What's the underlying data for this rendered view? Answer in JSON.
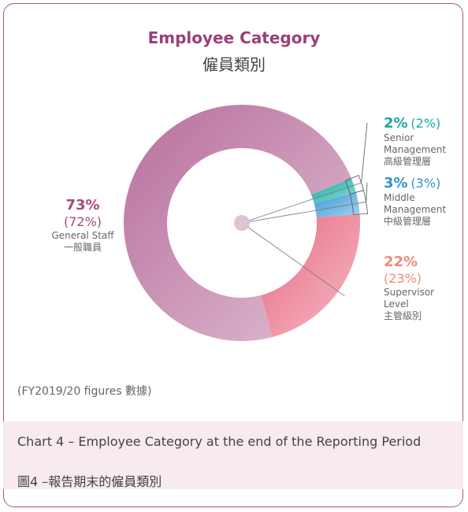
{
  "chart_data": {
    "type": "donut",
    "title": "Employee Category",
    "subtitle": "僱員類別",
    "categories": [
      "General Staff",
      "Senior Management",
      "Middle Management",
      "Supervisor Level"
    ],
    "categories_zh": [
      "一般職員",
      "高級管理層",
      "中級管理層",
      "主管級別"
    ],
    "values": [
      73,
      2,
      3,
      22
    ],
    "value_labels": [
      "73%",
      "2%",
      "3%",
      "22%"
    ],
    "prior_labels": [
      "(72%)",
      "(2%)",
      "(3%)",
      "(23%)"
    ],
    "colors": [
      "#b86e9c",
      "#16aaa2",
      "#3a9ad6",
      "#e86a82"
    ],
    "label_colors": [
      "#a9487f",
      "#16aaa2",
      "#2f93cf",
      "#ef8a7a"
    ],
    "note": "(FY2019/20 figures 數據)",
    "caption": "Chart 4 – Employee Category at the end of the Reporting Period",
    "caption_zh": "圖4 –報告期末的僱員類別"
  }
}
